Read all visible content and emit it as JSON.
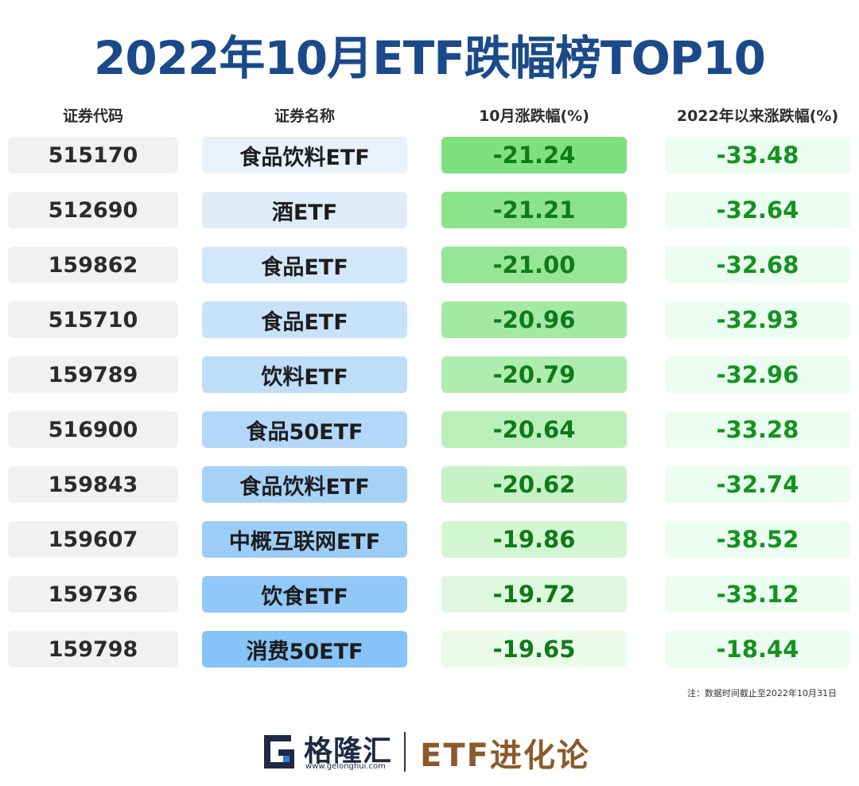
{
  "title": "2022年10月ETF跌幅榜TOP10",
  "headers": {
    "code": "证券代码",
    "name": "证券名称",
    "month": "10月涨跌幅(%)",
    "ytd": "2022年以来涨跌幅(%)"
  },
  "chart_data": {
    "type": "table",
    "title": "2022年10月ETF跌幅榜TOP10",
    "columns": [
      "证券代码",
      "证券名称",
      "10月涨跌幅(%)",
      "2022年以来涨跌幅(%)"
    ],
    "rows": [
      {
        "code": "515170",
        "name": "食品饮料ETF",
        "month": "-21.24",
        "ytd": "-33.48"
      },
      {
        "code": "512690",
        "name": "酒ETF",
        "month": "-21.21",
        "ytd": "-32.64"
      },
      {
        "code": "159862",
        "name": "食品ETF",
        "month": "-21.00",
        "ytd": "-32.68"
      },
      {
        "code": "515710",
        "name": "食品ETF",
        "month": "-20.96",
        "ytd": "-32.93"
      },
      {
        "code": "159789",
        "name": "饮料ETF",
        "month": "-20.79",
        "ytd": "-32.96"
      },
      {
        "code": "516900",
        "name": "食品50ETF",
        "month": "-20.64",
        "ytd": "-33.28"
      },
      {
        "code": "159843",
        "name": "食品饮料ETF",
        "month": "-20.62",
        "ytd": "-32.74"
      },
      {
        "code": "159607",
        "name": "中概互联网ETF",
        "month": "-19.86",
        "ytd": "-38.52"
      },
      {
        "code": "159736",
        "name": "饮食ETF",
        "month": "-19.72",
        "ytd": "-33.12"
      },
      {
        "code": "159798",
        "name": "消费50ETF",
        "month": "-19.65",
        "ytd": "-18.44"
      }
    ]
  },
  "note": "注：数据时间截止至2022年10月31日",
  "footer": {
    "brand": "格隆汇",
    "url": "www.gelonghui.com",
    "slogan": "ETF进化论"
  },
  "colors": {
    "title": "#1a4a8a",
    "name_light": "#e9f1fb",
    "name_dark": "#86c3f6",
    "month_strong": "#7fe07f",
    "month_light": "#eafbea",
    "ytd_bg": "#ebfdf0",
    "slogan": "#8b5a2b"
  }
}
